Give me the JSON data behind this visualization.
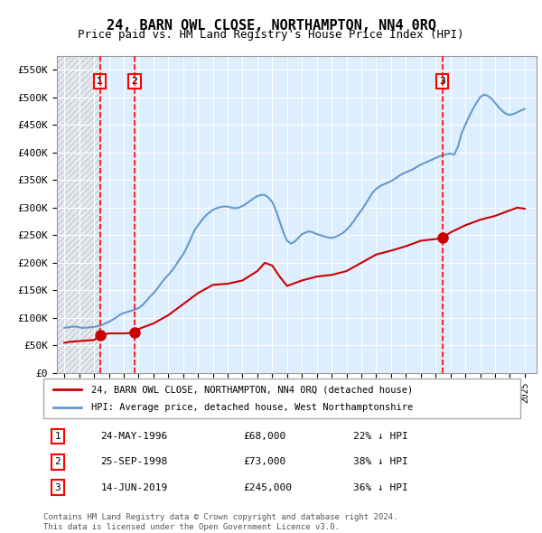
{
  "title": "24, BARN OWL CLOSE, NORTHAMPTON, NN4 0RQ",
  "subtitle": "Price paid vs. HM Land Registry's House Price Index (HPI)",
  "legend_line1": "24, BARN OWL CLOSE, NORTHAMPTON, NN4 0RQ (detached house)",
  "legend_line2": "HPI: Average price, detached house, West Northamptonshire",
  "footer1": "Contains HM Land Registry data © Crown copyright and database right 2024.",
  "footer2": "This data is licensed under the Open Government Licence v3.0.",
  "transactions": [
    {
      "num": 1,
      "date": "24-MAY-1996",
      "price": 68000,
      "year": 1996.39,
      "hpi_pct": "22% ↓ HPI"
    },
    {
      "num": 2,
      "date": "25-SEP-1998",
      "price": 73000,
      "year": 1998.73,
      "hpi_pct": "38% ↓ HPI"
    },
    {
      "num": 3,
      "date": "14-JUN-2019",
      "price": 245000,
      "year": 2019.45,
      "hpi_pct": "36% ↓ HPI"
    }
  ],
  "hpi_color": "#6699cc",
  "price_color": "#cc0000",
  "hatch_color": "#cccccc",
  "grid_color": "#cccccc",
  "ylim": [
    0,
    575000
  ],
  "yticks": [
    0,
    50000,
    100000,
    150000,
    200000,
    250000,
    300000,
    350000,
    400000,
    450000,
    500000,
    550000
  ],
  "xlim_start": 1993.5,
  "xlim_end": 2025.8,
  "hpi_data": {
    "years": [
      1994,
      1994.25,
      1994.5,
      1994.75,
      1995,
      1995.25,
      1995.5,
      1995.75,
      1996,
      1996.25,
      1996.5,
      1996.75,
      1997,
      1997.25,
      1997.5,
      1997.75,
      1998,
      1998.25,
      1998.5,
      1998.75,
      1999,
      1999.25,
      1999.5,
      1999.75,
      2000,
      2000.25,
      2000.5,
      2000.75,
      2001,
      2001.25,
      2001.5,
      2001.75,
      2002,
      2002.25,
      2002.5,
      2002.75,
      2003,
      2003.25,
      2003.5,
      2003.75,
      2004,
      2004.25,
      2004.5,
      2004.75,
      2005,
      2005.25,
      2005.5,
      2005.75,
      2006,
      2006.25,
      2006.5,
      2006.75,
      2007,
      2007.25,
      2007.5,
      2007.75,
      2008,
      2008.25,
      2008.5,
      2008.75,
      2009,
      2009.25,
      2009.5,
      2009.75,
      2010,
      2010.25,
      2010.5,
      2010.75,
      2011,
      2011.25,
      2011.5,
      2011.75,
      2012,
      2012.25,
      2012.5,
      2012.75,
      2013,
      2013.25,
      2013.5,
      2013.75,
      2014,
      2014.25,
      2014.5,
      2014.75,
      2015,
      2015.25,
      2015.5,
      2015.75,
      2016,
      2016.25,
      2016.5,
      2016.75,
      2017,
      2017.25,
      2017.5,
      2017.75,
      2018,
      2018.25,
      2018.5,
      2018.75,
      2019,
      2019.25,
      2019.5,
      2019.75,
      2020,
      2020.25,
      2020.5,
      2020.75,
      2021,
      2021.25,
      2021.5,
      2021.75,
      2022,
      2022.25,
      2022.5,
      2022.75,
      2023,
      2023.25,
      2023.5,
      2023.75,
      2024,
      2024.25,
      2024.5,
      2024.75,
      2025
    ],
    "values": [
      82000,
      83000,
      84000,
      84500,
      83000,
      82000,
      82500,
      83000,
      84000,
      85000,
      87000,
      90000,
      93000,
      97000,
      101000,
      106000,
      109000,
      111000,
      113000,
      115000,
      118000,
      123000,
      130000,
      138000,
      145000,
      153000,
      162000,
      171000,
      178000,
      186000,
      195000,
      206000,
      215000,
      228000,
      243000,
      258000,
      268000,
      277000,
      285000,
      291000,
      296000,
      299000,
      301000,
      302000,
      302000,
      300000,
      299000,
      300000,
      303000,
      307000,
      312000,
      317000,
      321000,
      323000,
      323000,
      318000,
      310000,
      295000,
      275000,
      255000,
      240000,
      235000,
      238000,
      245000,
      252000,
      255000,
      257000,
      255000,
      252000,
      250000,
      248000,
      246000,
      245000,
      247000,
      250000,
      254000,
      260000,
      267000,
      276000,
      286000,
      295000,
      305000,
      316000,
      327000,
      334000,
      339000,
      342000,
      345000,
      348000,
      352000,
      357000,
      361000,
      364000,
      367000,
      370000,
      374000,
      378000,
      381000,
      384000,
      387000,
      390000,
      393000,
      395000,
      397000,
      398000,
      396000,
      410000,
      435000,
      450000,
      465000,
      478000,
      490000,
      500000,
      505000,
      503000,
      498000,
      490000,
      482000,
      475000,
      470000,
      468000,
      470000,
      473000,
      476000,
      479000
    ]
  },
  "price_data": {
    "years": [
      1994.0,
      1994.5,
      1995.0,
      1996.0,
      1996.39,
      1997.0,
      1998.0,
      1998.73,
      1999.0,
      2000.0,
      2001.0,
      2002.0,
      2003.0,
      2004.0,
      2005.0,
      2006.0,
      2007.0,
      2007.5,
      2008.0,
      2008.5,
      2009.0,
      2010.0,
      2011.0,
      2012.0,
      2013.0,
      2014.0,
      2015.0,
      2016.0,
      2017.0,
      2018.0,
      2019.0,
      2019.45,
      2020.0,
      2021.0,
      2022.0,
      2023.0,
      2024.0,
      2024.5,
      2025.0
    ],
    "values": [
      55000,
      57000,
      58000,
      60000,
      68000,
      72000,
      72000,
      73000,
      80000,
      90000,
      105000,
      125000,
      145000,
      160000,
      162000,
      168000,
      185000,
      200000,
      195000,
      175000,
      158000,
      168000,
      175000,
      178000,
      185000,
      200000,
      215000,
      222000,
      230000,
      240000,
      243000,
      245000,
      255000,
      268000,
      278000,
      285000,
      295000,
      300000,
      298000
    ]
  }
}
